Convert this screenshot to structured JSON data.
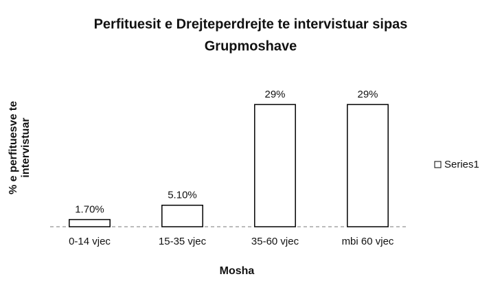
{
  "chart_data": {
    "type": "bar",
    "title": [
      "Perfituesit e Drejteperdrejte te intervistuar sipas",
      "Grupmoshave"
    ],
    "xlabel": "Mosha",
    "ylabel": [
      "% e perfituesve te",
      "intervistuar"
    ],
    "categories": [
      "0-14 vjec",
      "15-35 vjec",
      "35-60 vjec",
      "mbi 60 vjec"
    ],
    "series": [
      {
        "name": "Series1",
        "color": "#ffffff",
        "values": [
          1.7,
          5.1,
          29,
          29
        ],
        "value_labels": [
          "1.70%",
          "5.10%",
          "29%",
          "29%"
        ]
      }
    ],
    "ylim": [
      0,
      30
    ],
    "legend": "right"
  }
}
